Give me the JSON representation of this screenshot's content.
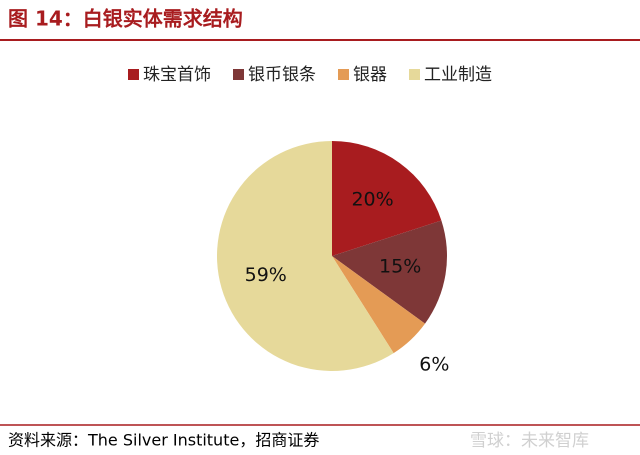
{
  "chart_data": {
    "type": "pie",
    "title": "图 14：白银实体需求结构",
    "categories": [
      "珠宝首饰",
      "银币银条",
      "银器",
      "工业制造"
    ],
    "values": [
      20,
      15,
      6,
      59
    ],
    "value_labels": [
      "20%",
      "15%",
      "6%",
      "59%"
    ],
    "colors": [
      "#a81c1f",
      "#7e3737",
      "#e49b55",
      "#e6d99a"
    ],
    "legend": "top",
    "source": "资料来源：The Silver Institute，招商证券",
    "watermark": "雪球：未来智库"
  }
}
